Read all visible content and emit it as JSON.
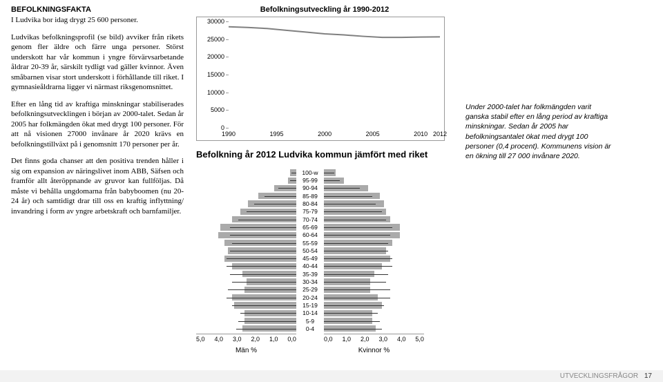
{
  "heading": "BEFOLKNINGSFAKTA",
  "paragraphs": [
    "I Ludvika bor idag drygt 25 600 personer.",
    "Ludvikas befolkningsprofil (se bild) avviker från rikets genom fler äldre och färre unga personer. Störst underskott har vår kommun i yngre förvärvsarbetande åldrar 20-39 år, särskilt tydligt vad gäller kvinnor. Även småbarnen visar stort underskott i förhållande till riket. I gymnasieåldrarna ligger vi närmast riksgenomsnittet.",
    "Efter en lång tid av kraftiga minskningar stabiliserades befolkningsutvecklingen i början av 2000-talet. Sedan år 2005 har folkmängden ökat med drygt 100 personer. För att nå visionen 27000 invånare år 2020 krävs en befolkningstillväxt på i genomsnitt 170 personer per år.",
    "Det finns goda chanser att den positiva trenden håller i sig om expansion av näringslivet inom ABB, Säfsen och framför allt återöppnande av gruvor kan fullföljas. Då måste vi behålla ungdomarna från babyboomen (nu 20-24 år) och samtidigt drar till oss en kraftig inflyttning/ invandring i form av yngre arbetskraft och barnfamiljer."
  ],
  "line_chart": {
    "title": "Befolkningsutveckling år 1990-2012",
    "yticks": [
      0,
      5000,
      10000,
      15000,
      20000,
      25000,
      30000
    ],
    "xticks": [
      1990,
      1995,
      2000,
      2005,
      2010,
      2012
    ],
    "ylim": [
      0,
      30000
    ],
    "xlim": [
      1990,
      2012
    ],
    "line_color": "#7f7f7f",
    "line_width": 2,
    "points": [
      [
        1990,
        28500
      ],
      [
        1992,
        28300
      ],
      [
        1994,
        28000
      ],
      [
        1996,
        27500
      ],
      [
        1998,
        27000
      ],
      [
        2000,
        26500
      ],
      [
        2002,
        26200
      ],
      [
        2004,
        25800
      ],
      [
        2006,
        25500
      ],
      [
        2008,
        25500
      ],
      [
        2010,
        25600
      ],
      [
        2012,
        25650
      ]
    ]
  },
  "sub_title": "Befolkning år 2012 Ludvika kommun jämfört med riket",
  "side_note": "Under 2000-talet har folkmängden varit ganska stabil efter en lång period av kraftiga minskningar. Sedan år 2005 har befolkningsantalet ökat med drygt 100 personer (0,4 procent). Kommunens vision är en ökning till 27 000 invånare 2020.",
  "pyramid": {
    "bar_fill": "#aaaaaa",
    "overlay_color": "#333333",
    "axis_max": 5,
    "rows": [
      {
        "label": "100-w",
        "m": 0.3,
        "k": 0.6,
        "rm": 0.25,
        "rk": 0.5
      },
      {
        "label": "95-99",
        "m": 0.4,
        "k": 1.0,
        "rm": 0.3,
        "rk": 0.8
      },
      {
        "label": "90-94",
        "m": 1.1,
        "k": 2.2,
        "rm": 0.9,
        "rk": 1.8
      },
      {
        "label": "85-89",
        "m": 1.9,
        "k": 2.8,
        "rm": 1.6,
        "rk": 2.4
      },
      {
        "label": "80-84",
        "m": 2.4,
        "k": 3.0,
        "rm": 2.1,
        "rk": 2.6
      },
      {
        "label": "75-79",
        "m": 2.8,
        "k": 3.1,
        "rm": 2.5,
        "rk": 2.9
      },
      {
        "label": "70-74",
        "m": 3.2,
        "k": 3.3,
        "rm": 2.9,
        "rk": 3.1
      },
      {
        "label": "65-69",
        "m": 3.8,
        "k": 3.8,
        "rm": 3.3,
        "rk": 3.4
      },
      {
        "label": "60-64",
        "m": 3.9,
        "k": 3.8,
        "rm": 3.3,
        "rk": 3.3
      },
      {
        "label": "55-59",
        "m": 3.6,
        "k": 3.4,
        "rm": 3.2,
        "rk": 3.2
      },
      {
        "label": "50-54",
        "m": 3.4,
        "k": 3.1,
        "rm": 3.3,
        "rk": 3.2
      },
      {
        "label": "45-49",
        "m": 3.6,
        "k": 3.3,
        "rm": 3.5,
        "rk": 3.4
      },
      {
        "label": "40-44",
        "m": 3.2,
        "k": 2.9,
        "rm": 3.5,
        "rk": 3.4
      },
      {
        "label": "35-39",
        "m": 2.7,
        "k": 2.5,
        "rm": 3.3,
        "rk": 3.2
      },
      {
        "label": "30-34",
        "m": 2.5,
        "k": 2.3,
        "rm": 3.2,
        "rk": 3.1
      },
      {
        "label": "25-29",
        "m": 2.6,
        "k": 2.3,
        "rm": 3.4,
        "rk": 3.3
      },
      {
        "label": "20-24",
        "m": 3.2,
        "k": 2.7,
        "rm": 3.5,
        "rk": 3.3
      },
      {
        "label": "15-19",
        "m": 3.1,
        "k": 2.9,
        "rm": 3.2,
        "rk": 3.0
      },
      {
        "label": "10-14",
        "m": 2.6,
        "k": 2.4,
        "rm": 2.8,
        "rk": 2.7
      },
      {
        "label": "5-9",
        "m": 2.6,
        "k": 2.4,
        "rm": 2.9,
        "rk": 2.8
      },
      {
        "label": "0-4",
        "m": 2.7,
        "k": 2.6,
        "rm": 3.0,
        "rk": 2.9
      }
    ],
    "xticks_left": [
      "5,0",
      "4,0",
      "3,0",
      "2,0",
      "1,0",
      "0,0"
    ],
    "xticks_right": [
      "0,0",
      "1,0",
      "2,0",
      "3,0",
      "4,0",
      "5,0"
    ],
    "left_label": "Män %",
    "right_label": "Kvinnor %"
  },
  "footer": {
    "section": "UTVECKLINGSFRÅGOR",
    "page": "17"
  }
}
